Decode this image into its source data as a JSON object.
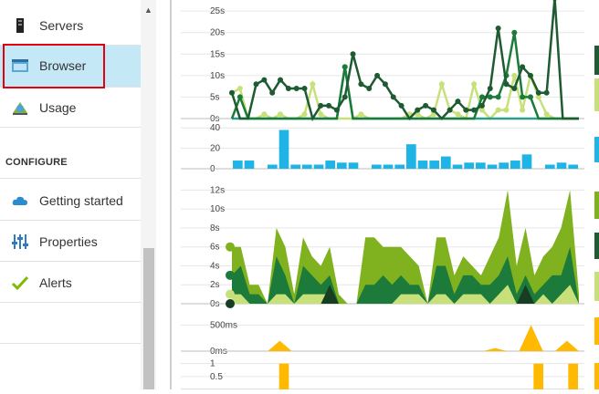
{
  "sidebar": {
    "items": [
      {
        "label": "Servers",
        "icon": "server-icon"
      },
      {
        "label": "Browser",
        "icon": "browser-window-icon",
        "selected": true
      },
      {
        "label": "Usage",
        "icon": "usage-icon"
      }
    ],
    "section_heading": "CONFIGURE",
    "config_items": [
      {
        "label": "Getting started",
        "icon": "cloud-icon"
      },
      {
        "label": "Properties",
        "icon": "properties-sliders-icon"
      },
      {
        "label": "Alerts",
        "icon": "checkmark-icon"
      }
    ]
  },
  "colors": {
    "highlight_border": "#e3000f",
    "selected_bg": "#c5e8f7",
    "dark_green": "#1e5a32",
    "green": "#7fb21e",
    "mid_green": "#1c7a3a",
    "light_green": "#c8e07a",
    "teal": "#2a9d8f",
    "blue": "#1eb4e6",
    "orange": "#ffb900"
  },
  "chart_data": [
    {
      "type": "line",
      "y_ticks": [
        "0s",
        "5s",
        "10s",
        "15s",
        "20s",
        "25s"
      ],
      "ylim": [
        0,
        28
      ],
      "x": [
        0,
        1,
        2,
        3,
        4,
        5,
        6,
        7,
        8,
        9,
        10,
        11,
        12,
        13,
        14,
        15,
        16,
        17,
        18,
        19,
        20,
        21,
        22,
        23,
        24,
        25,
        26,
        27,
        28,
        29,
        30,
        31,
        32,
        33,
        34,
        35,
        36,
        37,
        38,
        39,
        40,
        41,
        42,
        43
      ],
      "series": [
        {
          "color": "#1e5a32",
          "values": [
            6,
            0,
            0,
            8,
            9,
            6,
            9,
            7,
            7,
            7,
            0,
            3,
            3,
            2,
            5,
            15,
            8,
            7,
            10,
            8,
            5,
            3,
            0,
            2,
            3,
            2,
            0,
            2,
            4,
            2,
            2,
            3,
            7,
            21,
            8,
            7,
            12,
            10,
            6,
            6,
            28,
            0,
            0,
            0
          ]
        },
        {
          "color": "#1c7a3a",
          "values": [
            0,
            5,
            0,
            0,
            0,
            0,
            0,
            0,
            0,
            0,
            0,
            0,
            0,
            0,
            12,
            0,
            0,
            0,
            0,
            0,
            0,
            0,
            0,
            0,
            0,
            0,
            0,
            0,
            0,
            0,
            0,
            5,
            5,
            5,
            10,
            20,
            5,
            5,
            0,
            0,
            0,
            0,
            0,
            0
          ]
        },
        {
          "color": "#2a9d8f",
          "values": [
            0,
            0,
            0,
            0,
            0,
            0,
            0,
            0,
            0,
            0,
            0,
            0,
            0,
            0,
            12,
            0,
            0,
            0,
            0,
            0,
            0,
            0,
            0,
            0,
            0,
            0,
            0,
            0,
            0,
            0,
            0,
            0,
            0,
            0,
            0,
            0,
            0,
            0,
            0,
            0,
            0,
            0,
            0,
            0
          ]
        },
        {
          "color": "#c8e07a",
          "values": [
            6,
            7,
            0,
            0,
            1,
            0,
            1,
            0,
            0,
            1,
            8,
            1,
            0,
            0,
            0,
            0,
            1,
            0,
            0,
            0,
            0,
            0,
            1,
            1,
            0,
            1,
            8,
            2,
            1,
            0,
            8,
            2,
            0,
            2,
            2,
            10,
            2,
            10,
            5,
            1,
            0,
            0,
            0,
            0
          ]
        }
      ]
    },
    {
      "type": "bar",
      "y_ticks": [
        "0",
        "20",
        "40"
      ],
      "ylim": [
        0,
        42
      ],
      "values": [
        8,
        8,
        0,
        4,
        38,
        4,
        4,
        4,
        8,
        6,
        6,
        0,
        4,
        4,
        4,
        24,
        8,
        8,
        12,
        4,
        6,
        6,
        4,
        6,
        8,
        14,
        0,
        4,
        6,
        4
      ],
      "color": "#1eb4e6"
    },
    {
      "type": "area",
      "y_ticks": [
        "0s",
        "2s",
        "4s",
        "6s",
        "8s",
        "10s",
        "12s"
      ],
      "ylim": [
        0,
        13
      ],
      "x": [
        0,
        1,
        2,
        3,
        4,
        5,
        6,
        7,
        8,
        9,
        10,
        11,
        12,
        13,
        14,
        15,
        16,
        17,
        18,
        19,
        20,
        21,
        22,
        23,
        24,
        25,
        26,
        27,
        28,
        29,
        30,
        31,
        32,
        33,
        34,
        35,
        36,
        37,
        38,
        39
      ],
      "series": [
        {
          "color": "#7fb21e",
          "values": [
            6,
            6,
            2,
            2,
            0,
            8,
            6,
            1,
            7,
            5,
            4,
            6,
            1,
            0,
            0,
            7,
            7,
            6,
            6,
            6,
            5,
            4,
            0,
            7,
            7,
            3,
            5,
            4,
            3,
            5,
            7,
            12,
            4,
            8,
            3,
            5,
            6,
            8,
            12,
            1
          ]
        },
        {
          "color": "#1c7a3a",
          "values": [
            3,
            4,
            1,
            1,
            0,
            5,
            3,
            0,
            4,
            3,
            2,
            3,
            0,
            0,
            0,
            2,
            2,
            3,
            2,
            3,
            2,
            2,
            0,
            4,
            4,
            1,
            3,
            3,
            2,
            2,
            3,
            5,
            1,
            3,
            1,
            2,
            3,
            3,
            6,
            0
          ]
        },
        {
          "color": "#c8e07a",
          "values": [
            1,
            1,
            0,
            0,
            0,
            1,
            1,
            0,
            1,
            1,
            1,
            1,
            0,
            0,
            0,
            0,
            0,
            0,
            0,
            1,
            1,
            1,
            0,
            1,
            1,
            0,
            1,
            1,
            1,
            0,
            1,
            2,
            0,
            1,
            0,
            1,
            0,
            1,
            2,
            0
          ]
        },
        {
          "color": "#173d22",
          "values": [
            0,
            0,
            0,
            0,
            0,
            0,
            0,
            0,
            0,
            0,
            0,
            2,
            0,
            0,
            0,
            0,
            0,
            0,
            0,
            0,
            0,
            0,
            0,
            0,
            0,
            0,
            0,
            0,
            0,
            0,
            0,
            0,
            0,
            2,
            0,
            0,
            0,
            0,
            0,
            0
          ]
        }
      ]
    },
    {
      "type": "area",
      "y_ticks": [
        "0ms",
        "500ms"
      ],
      "ylim": [
        0,
        700
      ],
      "x": [
        0,
        1,
        2,
        3,
        4,
        5,
        6,
        7,
        8,
        9,
        10,
        11,
        12,
        13,
        14,
        15,
        16,
        17,
        18,
        19,
        20,
        21,
        22,
        23,
        24,
        25,
        26,
        27,
        28,
        29
      ],
      "series": [
        {
          "color": "#ffb900",
          "values": [
            0,
            0,
            0,
            0,
            200,
            0,
            0,
            0,
            0,
            0,
            0,
            0,
            0,
            0,
            0,
            0,
            0,
            0,
            0,
            0,
            0,
            0,
            60,
            0,
            0,
            500,
            0,
            0,
            200,
            0
          ]
        }
      ]
    },
    {
      "type": "bar",
      "y_ticks": [
        "0.5",
        "1"
      ],
      "ylim": [
        0,
        1.2
      ],
      "values": [
        0,
        0,
        0,
        0,
        1,
        0,
        0,
        0,
        0,
        0,
        0,
        0,
        0,
        0,
        0,
        0,
        0,
        0,
        0,
        0,
        0,
        0,
        0,
        0,
        0,
        0,
        1,
        0,
        0,
        1
      ],
      "color": "#ffb900"
    }
  ],
  "legend_swatches": [
    "#1e5a32",
    "#c8e07a",
    "#1eb4e6",
    "#7fb21e",
    "#1e5a32",
    "#c8e07a",
    "#ffb900",
    "#ffb900"
  ]
}
